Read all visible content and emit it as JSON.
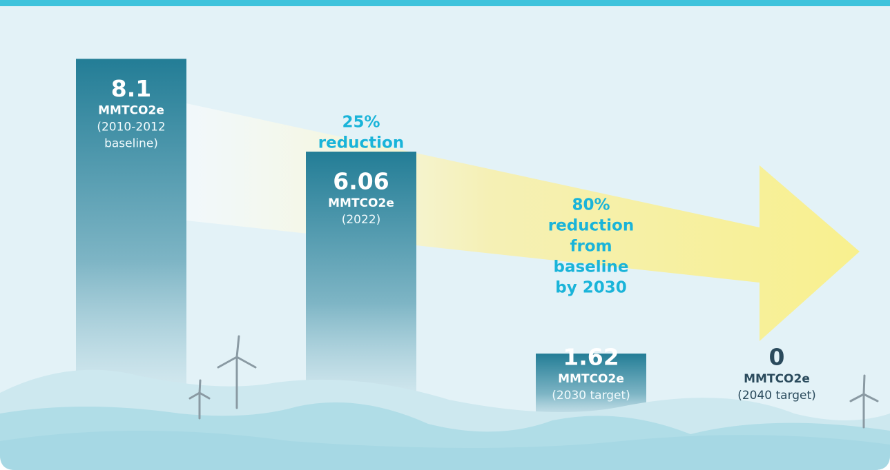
{
  "chart_data": {
    "type": "bar",
    "categories": [
      null,
      null,
      null,
      null
    ],
    "values": [
      8.1,
      6.06,
      1.62,
      0
    ],
    "units": "MMTCO2e",
    "notes": [
      [
        "(2010-2012",
        "baseline)"
      ],
      [
        "(2022)"
      ],
      [
        "(2030 target)"
      ],
      [
        "(2040 target)"
      ]
    ],
    "color": "#237d96",
    "annotations": [
      {
        "lines": [
          "25%",
          "reduction"
        ]
      },
      {
        "lines": [
          "80%",
          "reduction",
          "from",
          "baseline",
          "by 2030"
        ]
      }
    ]
  }
}
